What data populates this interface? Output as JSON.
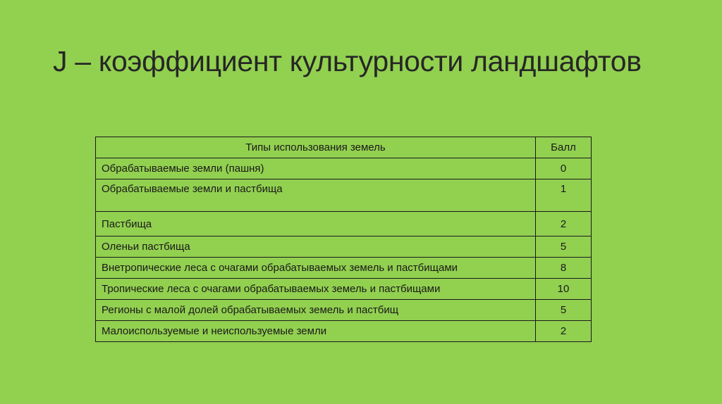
{
  "slide": {
    "title": "J – коэффициент культурности ландшафтов",
    "background_color": "#92d050"
  },
  "table": {
    "headers": {
      "type": "Типы использования земель",
      "score": "Балл"
    },
    "rows": [
      {
        "type": "Обрабатываемые земли (пашня)",
        "score": "0"
      },
      {
        "type": "Обрабатываемые земли и пастбища",
        "score": "1"
      },
      {
        "type": "Пастбища",
        "score": "2"
      },
      {
        "type": "Оленьи пастбища",
        "score": "5"
      },
      {
        "type": "Внетропические леса с очагами обрабатываемых земель и пастбищами",
        "score": "8"
      },
      {
        "type": "Тропические леса с очагами обрабатываемых земель и пастбищами",
        "score": "10"
      },
      {
        "type": "Регионы с малой долей обрабатываемых земель и пастбищ",
        "score": "5"
      },
      {
        "type": "Малоиспользуемые и неиспользуемые земли",
        "score": "2"
      }
    ]
  }
}
